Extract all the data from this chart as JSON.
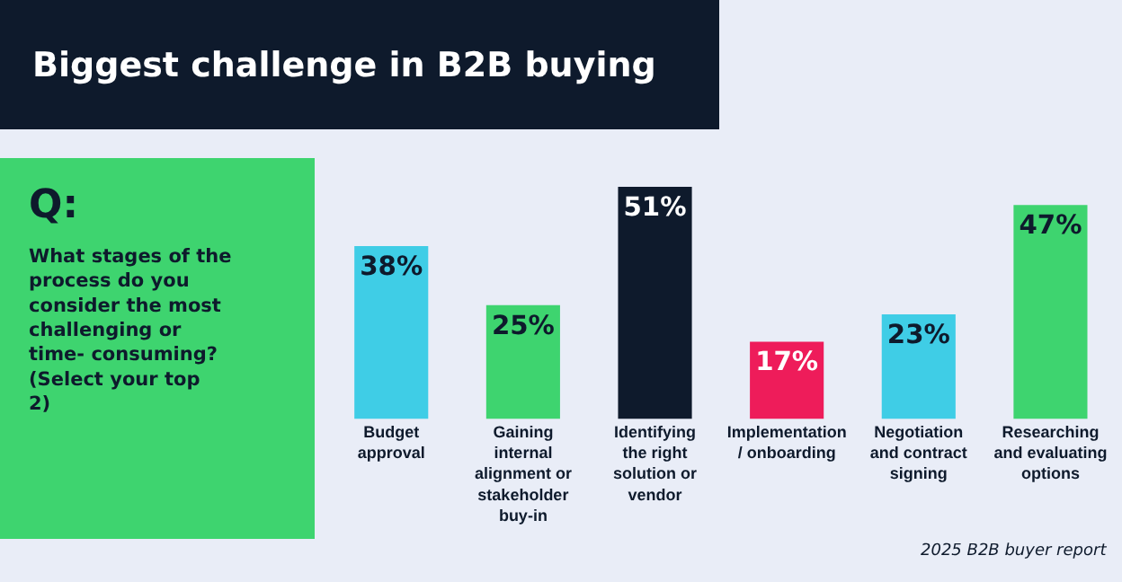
{
  "chart_data": {
    "type": "bar",
    "title": "Biggest challenge in B2B buying",
    "categories": [
      "Budget approval",
      "Gaining internal alignment or stakeholder buy-in",
      "Identifying the right solution or vendor",
      "Implementation / onboarding",
      "Negotiation and contract signing",
      "Researching and evaluating options"
    ],
    "values": [
      38,
      25,
      51,
      17,
      23,
      47
    ],
    "colors": [
      "#3fcde6",
      "#3ed46f",
      "#0e1a2c",
      "#ee1c5a",
      "#3fcde6",
      "#3ed46f"
    ],
    "value_labels": [
      "38%",
      "25%",
      "51%",
      "17%",
      "23%",
      "47%"
    ],
    "tick_labels": "x",
    "grid": false,
    "annotations": [
      "Q:",
      "What stages of the process do you consider the most challenging or time- consuming? (Select your top 2)",
      "2025 B2B buyer report"
    ]
  }
}
